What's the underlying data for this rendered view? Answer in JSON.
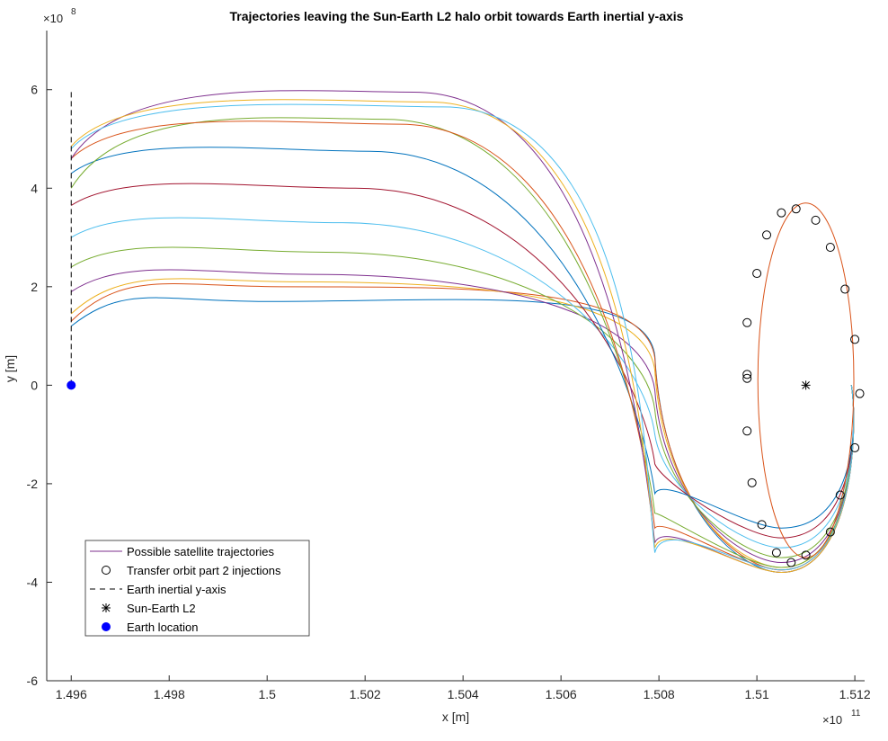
{
  "figure": {
    "title": "Trajectories leaving the Sun-Earth L2 halo orbit towards Earth inertial y-axis",
    "xlabel": "x [m]",
    "ylabel": "y [m]",
    "x_exponent": "×10",
    "x_exponent_power": "11",
    "y_exponent": "×10",
    "y_exponent_power": "8"
  },
  "chart_data": {
    "type": "line",
    "xlim": [
      1.4955,
      1.5122
    ],
    "ylim": [
      -6.0,
      7.2
    ],
    "xscale_note": "x values in units of 1e11 m",
    "yscale_note": "y values in units of 1e8 m",
    "xticks": [
      1.496,
      1.498,
      1.5,
      1.502,
      1.504,
      1.506,
      1.508,
      1.51,
      1.512
    ],
    "xtick_labels": [
      "1.496",
      "1.498",
      "1.5",
      "1.502",
      "1.504",
      "1.506",
      "1.508",
      "1.51",
      "1.512"
    ],
    "yticks": [
      -6,
      -4,
      -2,
      0,
      2,
      4,
      6
    ],
    "ytick_labels": [
      "-6",
      "-4",
      "-2",
      "0",
      "2",
      "4",
      "6"
    ],
    "grid": false,
    "legend_location": "bottom-left",
    "earth_axis": {
      "x": 1.496,
      "y_from": 0,
      "y_to": 6.0
    },
    "earth_location": {
      "x": 1.496,
      "y": 0
    },
    "l2_location": {
      "x": 1.511,
      "y": 0
    },
    "halo_orbit": {
      "center_x": 1.511,
      "center_y": 0.1,
      "radius_x": 0.00098,
      "radius_y": 3.6,
      "west_edge_x": 1.5081
    },
    "injection_points": [
      {
        "x": 1.5108,
        "y": 3.58
      },
      {
        "x": 1.5112,
        "y": 3.35
      },
      {
        "x": 1.5115,
        "y": 2.8
      },
      {
        "x": 1.5118,
        "y": 1.95
      },
      {
        "x": 1.512,
        "y": 0.93
      },
      {
        "x": 1.5121,
        "y": -0.17
      },
      {
        "x": 1.512,
        "y": -1.27
      },
      {
        "x": 1.5117,
        "y": -2.23
      },
      {
        "x": 1.5115,
        "y": -2.98
      },
      {
        "x": 1.511,
        "y": -3.45
      },
      {
        "x": 1.5107,
        "y": -3.6
      },
      {
        "x": 1.5104,
        "y": -3.4
      },
      {
        "x": 1.5101,
        "y": -2.83
      },
      {
        "x": 1.5099,
        "y": -1.98
      },
      {
        "x": 1.5098,
        "y": -0.93
      },
      {
        "x": 1.5098,
        "y": 0.14
      },
      {
        "x": 1.5098,
        "y": 0.22
      },
      {
        "x": 1.5098,
        "y": 1.27
      },
      {
        "x": 1.51,
        "y": 2.27
      },
      {
        "x": 1.5102,
        "y": 3.05
      },
      {
        "x": 1.5105,
        "y": 3.5
      }
    ],
    "trajectories": [
      {
        "color": "#0072BD",
        "y_end": 1.2,
        "peak_y": 1.7,
        "low_y": 0.6,
        "bottom_y": -3.8
      },
      {
        "color": "#D95319",
        "y_end": 1.3,
        "peak_y": 2.0,
        "low_y": 0.55,
        "bottom_y": -3.75
      },
      {
        "color": "#EDB120",
        "y_end": 1.45,
        "peak_y": 2.1,
        "low_y": 0.3,
        "bottom_y": -3.7
      },
      {
        "color": "#7E2F8E",
        "y_end": 1.9,
        "peak_y": 2.25,
        "low_y": -0.1,
        "bottom_y": -3.6
      },
      {
        "color": "#77AC30",
        "y_end": 2.4,
        "peak_y": 2.7,
        "low_y": -0.5,
        "bottom_y": -3.5
      },
      {
        "color": "#4DBEEE",
        "y_end": 3.0,
        "peak_y": 3.3,
        "low_y": -1.0,
        "bottom_y": -3.3
      },
      {
        "color": "#A2142F",
        "y_end": 3.65,
        "peak_y": 4.0,
        "low_y": -1.6,
        "bottom_y": -3.1
      },
      {
        "color": "#0072BD",
        "y_end": 4.3,
        "peak_y": 4.75,
        "low_y": -2.2,
        "bottom_y": -2.9
      },
      {
        "color": "#77AC30",
        "y_end": 4.0,
        "peak_y": 5.4,
        "low_y": -2.6,
        "bottom_y": -3.7
      },
      {
        "color": "#D95319",
        "y_end": 4.6,
        "peak_y": 5.3,
        "low_y": -2.9,
        "bottom_y": -3.75
      },
      {
        "color": "#7E2F8E",
        "y_end": 4.6,
        "peak_y": 5.95,
        "low_y": -3.2,
        "bottom_y": -3.8
      },
      {
        "color": "#EDB120",
        "y_end": 4.85,
        "peak_y": 5.75,
        "low_y": -3.3,
        "bottom_y": -3.8
      },
      {
        "color": "#4DBEEE",
        "y_end": 4.8,
        "peak_y": 5.65,
        "low_y": -3.4,
        "bottom_y": -3.75
      }
    ],
    "legend": [
      {
        "label": "Possible satellite trajectories",
        "marker": "line",
        "color": "#7E2F8E"
      },
      {
        "label": "Transfer orbit part 2 injections",
        "marker": "circle",
        "color": "#000000"
      },
      {
        "label": "Earth inertial y-axis",
        "marker": "dashed",
        "color": "#000000"
      },
      {
        "label": "Sun-Earth L2",
        "marker": "asterisk",
        "color": "#000000"
      },
      {
        "label": "Earth location",
        "marker": "dot",
        "color": "#0000FF"
      }
    ]
  }
}
